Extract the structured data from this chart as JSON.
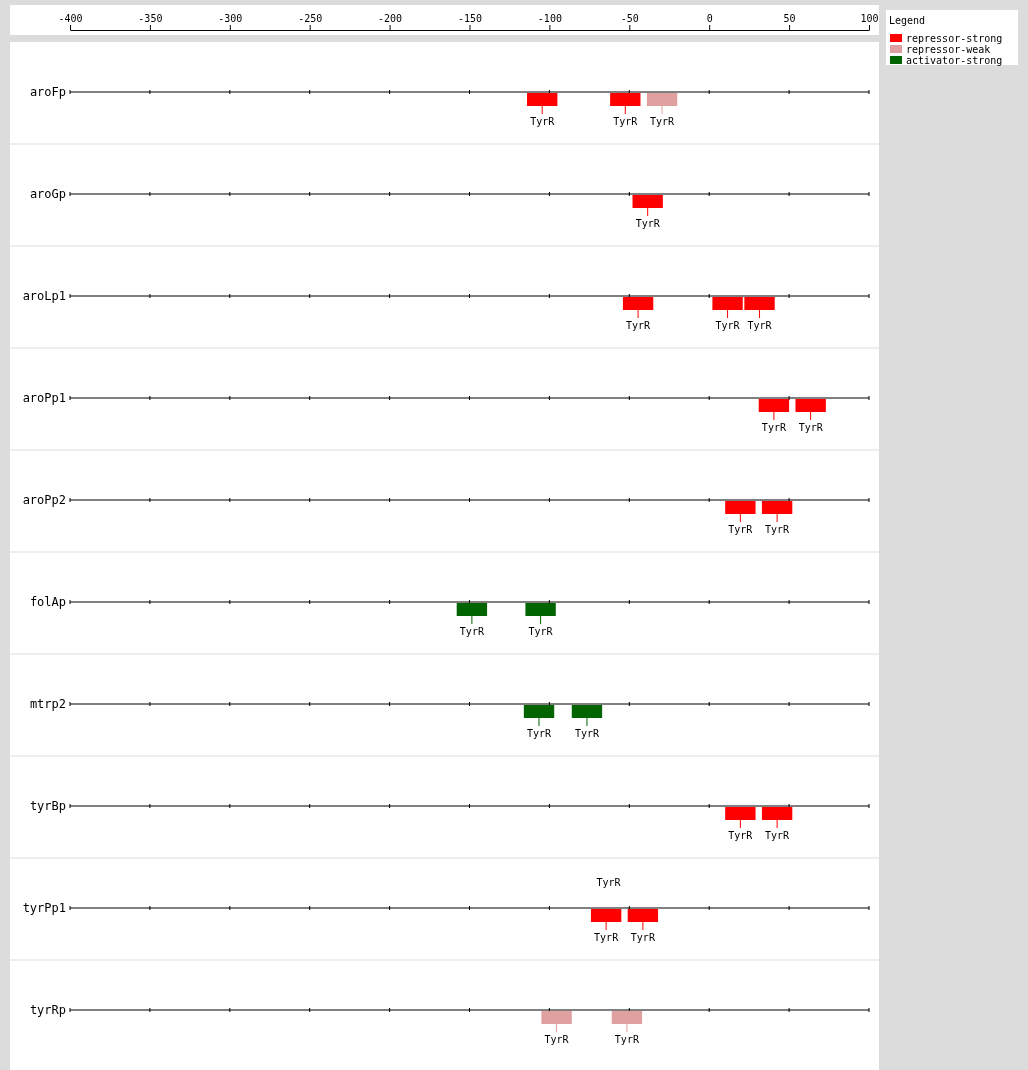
{
  "chart_data": {
    "type": "bar",
    "orientation": "horizontal",
    "legend_title": "Legend",
    "legend": "top right",
    "grid": true,
    "categories": [
      "aroFp",
      "aroGp",
      "aroLp1",
      "aroPp1",
      "aroPp2",
      "folAp",
      "mtrp2",
      "tyrBp",
      "tyrPp1",
      "tyrRp"
    ],
    "xlim": [
      -400,
      100
    ],
    "xticks": [
      -400,
      -350,
      -300,
      -250,
      -200,
      -150,
      -100,
      -50,
      0,
      50,
      100
    ],
    "series": [
      {
        "name": "repressor-strong",
        "color": "#ff0000",
        "base": [
          -114,
          -48,
          -54,
          31,
          10,
          null,
          null,
          10,
          -74,
          null
        ],
        "values": [
          19,
          19,
          19,
          19,
          19,
          null,
          null,
          19,
          19,
          null
        ],
        "value_labels": [
          "TyrR",
          "TyrR",
          "TyrR",
          "TyrR",
          "TyrR",
          null,
          null,
          "TyrR",
          "TyrR",
          null
        ]
      },
      {
        "name": "repressor-weak",
        "color": "#e0a0a0",
        "base": [
          -39,
          null,
          null,
          null,
          null,
          null,
          null,
          null,
          null,
          -105
        ],
        "values": [
          19,
          null,
          null,
          null,
          null,
          null,
          null,
          null,
          null,
          19
        ],
        "value_labels": [
          "TyrR",
          null,
          null,
          null,
          null,
          null,
          null,
          null,
          null,
          "TyrR"
        ]
      },
      {
        "name": "activator-strong",
        "color": "#006400",
        "base": [
          null,
          null,
          null,
          null,
          null,
          -158,
          -116,
          null,
          null,
          null
        ],
        "values": [
          null,
          null,
          null,
          null,
          null,
          19,
          19,
          null,
          null,
          null
        ],
        "value_labels": [
          null,
          null,
          null,
          null,
          null,
          "TyrR",
          "TyrR",
          null,
          null,
          null
        ]
      },
      {
        "color": "#ff0000",
        "base": [
          -62,
          null,
          2,
          54,
          33,
          null,
          null,
          33,
          -51,
          null
        ],
        "values": [
          19,
          null,
          19,
          19,
          19,
          null,
          null,
          19,
          19,
          null
        ],
        "value_labels": [
          "TyrR",
          null,
          "TyrR",
          "TyrR",
          "TyrR",
          null,
          null,
          "TyrR",
          "TyrR",
          null
        ]
      },
      {
        "color": "#ff0000",
        "base": [
          null,
          null,
          22,
          null,
          null,
          null,
          null,
          null,
          null,
          null
        ],
        "values": [
          null,
          null,
          19,
          null,
          null,
          null,
          null,
          null,
          null,
          null
        ],
        "value_labels": [
          null,
          null,
          "TyrR",
          null,
          null,
          null,
          null,
          null,
          null,
          null
        ]
      },
      {
        "color": "#e0a0a0",
        "base": [
          null,
          null,
          null,
          null,
          null,
          null,
          null,
          null,
          null,
          -61
        ],
        "values": [
          null,
          null,
          null,
          null,
          null,
          null,
          null,
          null,
          null,
          19
        ],
        "value_labels": [
          null,
          null,
          null,
          null,
          null,
          null,
          null,
          null,
          null,
          "TyrR"
        ]
      },
      {
        "color": "#006400",
        "base": [
          null,
          null,
          null,
          null,
          null,
          -115,
          -86,
          null,
          null,
          null
        ],
        "values": [
          null,
          null,
          null,
          null,
          null,
          19,
          19,
          null,
          null,
          null
        ],
        "value_labels": [
          null,
          null,
          null,
          null,
          null,
          "TyrR",
          "TyrR",
          null,
          null,
          null
        ]
      }
    ],
    "annotations": [
      {
        "text": "TyrR",
        "x": -63,
        "y": "tyrPp1"
      }
    ]
  }
}
